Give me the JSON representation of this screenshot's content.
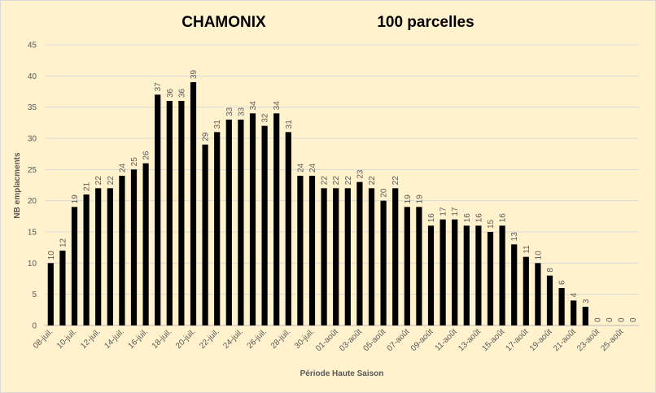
{
  "chart_data": {
    "type": "bar",
    "title": "CHAMONIX",
    "subtitle": "100 parcelles",
    "x_label": "Période Haute Saison",
    "y_label": "NB emplacments",
    "categories": [
      "08-juil.",
      null,
      "10-juil.",
      null,
      "12-juil.",
      null,
      "14-juil.",
      null,
      "16-juil.",
      null,
      "18-juil.",
      null,
      "20-juil.",
      null,
      "22-juil.",
      null,
      "24-juil.",
      null,
      "26-juil.",
      null,
      "28-juil.",
      null,
      "30-juil.",
      null,
      "01-août",
      null,
      "03-août",
      null,
      "05-août",
      null,
      "07-août",
      null,
      "09-août",
      null,
      "11-août",
      null,
      "13-août",
      null,
      "15-août",
      null,
      "17-août",
      null,
      "19-août",
      null,
      "21-août",
      null,
      "23-août",
      null,
      "25-août",
      null
    ],
    "values": [
      10,
      12,
      19,
      21,
      22,
      22,
      24,
      25,
      26,
      37,
      36,
      36,
      39,
      29,
      31,
      33,
      33,
      34,
      32,
      34,
      31,
      24,
      24,
      22,
      22,
      22,
      23,
      22,
      20,
      22,
      19,
      19,
      16,
      17,
      17,
      16,
      16,
      15,
      16,
      13,
      11,
      10,
      8,
      6,
      4,
      3,
      0,
      0,
      0,
      0
    ],
    "color": "#000000",
    "ylim": [
      0,
      45
    ],
    "yticks": [
      0,
      5,
      10,
      15,
      20,
      25,
      30,
      35,
      40,
      45
    ],
    "grid": true
  }
}
